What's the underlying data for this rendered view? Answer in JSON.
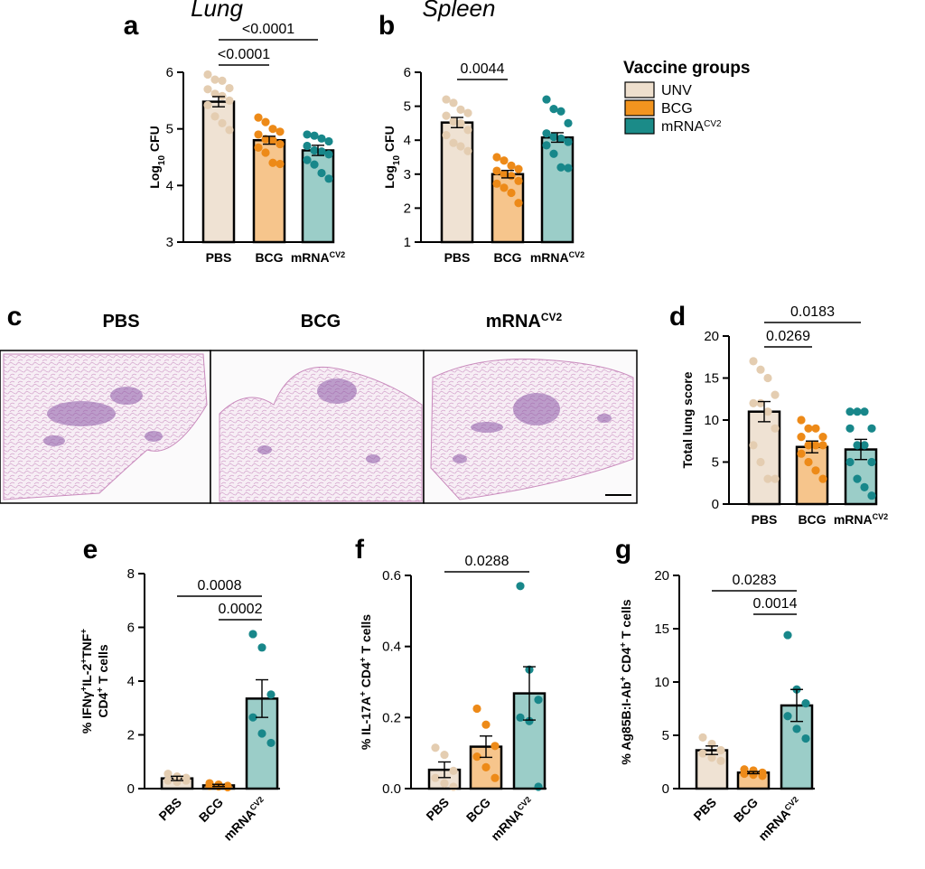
{
  "legend": {
    "title": "Vaccine groups",
    "items": [
      {
        "label": "UNV",
        "color": "#eedfcd"
      },
      {
        "label": "BCG",
        "color": "#f2941f"
      },
      {
        "label": "mRNA",
        "sup": "CV2",
        "color": "#1b8b88"
      }
    ]
  },
  "colors": {
    "unv_fill": "#efe2d3",
    "unv_dot": "#e4cdb1",
    "bcg_fill": "#f6c58c",
    "bcg_dot": "#ed8a18",
    "mrna_fill": "#9bcdc8",
    "mrna_dot": "#18878a"
  },
  "histology": {
    "panel_label": "c",
    "titles": [
      {
        "text": "PBS"
      },
      {
        "text": "BCG"
      },
      {
        "text": "mRNA",
        "sup": "CV2"
      }
    ]
  },
  "chart_data": [
    {
      "panel": "a",
      "type": "bar",
      "title": "Lung",
      "ylabel": {
        "base": "Log",
        "sub": "10",
        "rest": " CFU"
      },
      "ylim": [
        3,
        6
      ],
      "yticks": [
        3,
        4,
        5,
        6
      ],
      "categories": [
        {
          "text": "PBS"
        },
        {
          "text": "BCG"
        },
        {
          "text": "mRNA",
          "sup": "CV2"
        }
      ],
      "values": [
        5.48,
        4.8,
        4.62
      ],
      "sem": [
        0.09,
        0.07,
        0.09
      ],
      "points": [
        [
          5.96,
          5.87,
          5.85,
          5.72,
          5.7,
          5.62,
          5.58,
          5.5,
          5.42,
          5.22,
          5.1,
          4.98
        ],
        [
          5.2,
          5.12,
          5.0,
          4.95,
          4.9,
          4.82,
          4.8,
          4.73,
          4.67,
          4.58,
          4.4,
          4.38
        ],
        [
          4.9,
          4.88,
          4.83,
          4.78,
          4.7,
          4.62,
          4.6,
          4.55,
          4.45,
          4.37,
          4.22,
          4.12
        ]
      ],
      "comparisons": [
        {
          "from": 0,
          "to": 1,
          "label": "<0.0001"
        },
        {
          "from": 0,
          "to": 2,
          "label": "<0.0001"
        }
      ]
    },
    {
      "panel": "b",
      "type": "bar",
      "title": "Spleen",
      "ylabel": {
        "base": "Log",
        "sub": "10",
        "rest": " CFU"
      },
      "ylim": [
        1,
        6
      ],
      "yticks": [
        1,
        2,
        3,
        4,
        5,
        6
      ],
      "categories": [
        {
          "text": "PBS"
        },
        {
          "text": "BCG"
        },
        {
          "text": "mRNA",
          "sup": "CV2"
        }
      ],
      "values": [
        4.52,
        3.0,
        4.08
      ],
      "sem": [
        0.15,
        0.11,
        0.14
      ],
      "points": [
        [
          5.2,
          5.1,
          4.9,
          4.8,
          4.72,
          4.55,
          4.5,
          4.3,
          4.15,
          3.92,
          3.82,
          3.68
        ],
        [
          3.5,
          3.4,
          3.25,
          3.15,
          3.1,
          3.0,
          2.95,
          2.8,
          2.72,
          2.6,
          2.45,
          2.15
        ],
        [
          5.2,
          4.92,
          4.85,
          4.5,
          4.2,
          4.1,
          4.05,
          3.95,
          3.85,
          3.6,
          3.2,
          3.18
        ]
      ],
      "comparisons": [
        {
          "from": 0,
          "to": 1,
          "label": "0.0044"
        }
      ]
    },
    {
      "panel": "d",
      "type": "bar",
      "title": "",
      "ylabel": {
        "base": "Total lung score",
        "sub": "",
        "rest": ""
      },
      "ylim": [
        0,
        20
      ],
      "yticks": [
        0,
        5,
        10,
        15,
        20
      ],
      "categories": [
        {
          "text": "PBS"
        },
        {
          "text": "BCG"
        },
        {
          "text": "mRNA",
          "sup": "CV2"
        }
      ],
      "values": [
        11,
        6.8,
        6.5
      ],
      "sem": [
        1.2,
        0.7,
        1.2
      ],
      "points": [
        [
          17,
          16,
          15,
          13,
          12,
          12,
          11,
          9,
          7,
          5,
          3,
          3
        ],
        [
          10,
          9,
          9,
          8,
          8,
          7,
          7,
          7,
          6,
          5,
          4,
          3
        ],
        [
          11,
          11,
          11,
          9,
          9,
          7,
          7,
          5,
          5,
          3,
          2,
          1
        ]
      ],
      "comparisons": [
        {
          "from": 0,
          "to": 1,
          "label": "0.0269"
        },
        {
          "from": 0,
          "to": 2,
          "label": "0.0183"
        }
      ]
    },
    {
      "panel": "e",
      "type": "bar",
      "title": "",
      "ylabel": {
        "lines": [
          "% IFNγ+IL-2+TNF+",
          "CD4+ T cells"
        ]
      },
      "ylim": [
        0,
        8
      ],
      "yticks": [
        0,
        2,
        4,
        6,
        8
      ],
      "categories": [
        {
          "text": "PBS"
        },
        {
          "text": "BCG"
        },
        {
          "text": "mRNA",
          "sup": "CV2"
        }
      ],
      "values": [
        0.38,
        0.12,
        3.35
      ],
      "sem": [
        0.08,
        0.04,
        0.7
      ],
      "points": [
        [
          0.55,
          0.45,
          0.4,
          0.3,
          0.25,
          0.3
        ],
        [
          0.2,
          0.15,
          0.1,
          0.1,
          0.08,
          0.05
        ],
        [
          5.75,
          5.25,
          3.5,
          2.65,
          2.05,
          1.7
        ]
      ],
      "comparisons": [
        {
          "from": 0,
          "to": 2,
          "label": "0.0008"
        },
        {
          "from": 1,
          "to": 2,
          "label": "0.0002"
        }
      ]
    },
    {
      "panel": "f",
      "type": "bar",
      "title": "",
      "ylabel": {
        "lines": [
          "% IL-17A+ CD4+ T cells"
        ]
      },
      "ylim": [
        0,
        0.6
      ],
      "yticks": [
        0.0,
        0.2,
        0.4,
        0.6
      ],
      "categories": [
        {
          "text": "PBS"
        },
        {
          "text": "BCG"
        },
        {
          "text": "mRNA",
          "sup": "CV2"
        }
      ],
      "values": [
        0.053,
        0.118,
        0.268
      ],
      "sem": [
        0.022,
        0.03,
        0.075
      ],
      "points": [
        [
          0.115,
          0.095,
          0.05,
          0.03,
          0.015,
          0.005
        ],
        [
          0.225,
          0.18,
          0.12,
          0.09,
          0.06,
          0.03
        ],
        [
          0.57,
          0.335,
          0.25,
          0.2,
          0.19,
          0.005
        ]
      ],
      "comparisons": [
        {
          "from": 0,
          "to": 2,
          "label": "0.0288"
        }
      ]
    },
    {
      "panel": "g",
      "type": "bar",
      "title": "",
      "ylabel": {
        "lines": [
          "% Ag85B:I-Ab+ CD4+ T cells"
        ]
      },
      "ylim": [
        0,
        20
      ],
      "yticks": [
        0,
        5,
        10,
        15,
        20
      ],
      "categories": [
        {
          "text": "PBS"
        },
        {
          "text": "BCG"
        },
        {
          "text": "mRNA",
          "sup": "CV2"
        }
      ],
      "values": [
        3.6,
        1.5,
        7.8
      ],
      "sem": [
        0.4,
        0.1,
        1.5
      ],
      "points": [
        [
          4.8,
          4.2,
          3.6,
          3.3,
          2.9,
          2.6
        ],
        [
          1.8,
          1.7,
          1.5,
          1.4,
          1.3,
          1.2
        ],
        [
          14.4,
          9.3,
          8.0,
          6.8,
          5.6,
          4.7
        ]
      ],
      "comparisons": [
        {
          "from": 0,
          "to": 2,
          "label": "0.0283"
        },
        {
          "from": 1,
          "to": 2,
          "label": "0.0014"
        }
      ]
    }
  ]
}
